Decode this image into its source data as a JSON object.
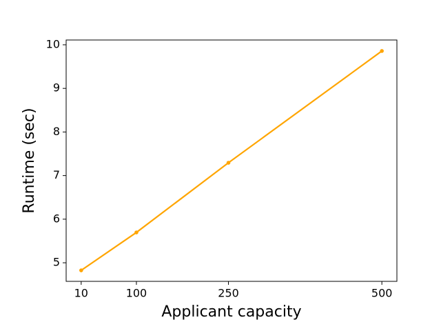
{
  "chart_data": {
    "type": "line",
    "x_label": "Applicant capacity",
    "y_label": "Runtime (sec)",
    "x": [
      10,
      100,
      250,
      500
    ],
    "series": [
      {
        "color": "#ffa500",
        "values": [
          4.826,
          5.696,
          7.294,
          9.858
        ]
      }
    ],
    "xlim": [
      -14.5,
      524.5
    ],
    "xticks": [
      10,
      100,
      250,
      500
    ],
    "ylim": [
      4.574,
      10.11
    ],
    "yticks": [
      5,
      6,
      7,
      8,
      9,
      10
    ],
    "grid": false
  }
}
